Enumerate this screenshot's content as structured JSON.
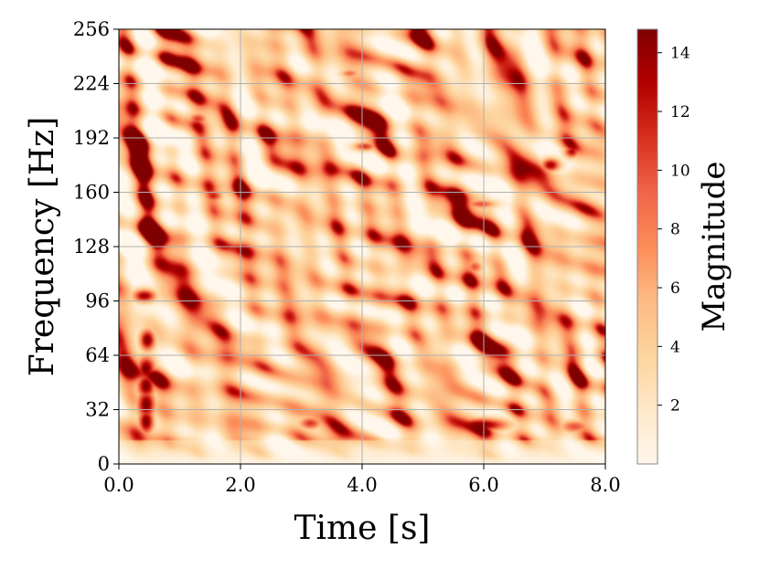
{
  "chart_data": {
    "type": "heatmap",
    "title": "",
    "xlabel": "Time [s]",
    "ylabel": "Frequency [Hz]",
    "xlim": [
      0,
      8
    ],
    "ylim": [
      0,
      256
    ],
    "x_ticks": [
      "0.0",
      "2.0",
      "4.0",
      "6.0",
      "8.0"
    ],
    "x_tick_values": [
      0,
      2,
      4,
      6,
      8
    ],
    "y_ticks": [
      "0",
      "32",
      "64",
      "96",
      "128",
      "160",
      "192",
      "224",
      "256"
    ],
    "y_tick_values": [
      0,
      32,
      64,
      96,
      128,
      160,
      192,
      224,
      256
    ],
    "grid": true,
    "colormap": "OrRd",
    "colorbar": {
      "label": "Magnitude",
      "range": [
        0,
        14.8
      ],
      "ticks": [
        "2",
        "4",
        "6",
        "8",
        "10",
        "12",
        "14"
      ],
      "tick_values": [
        2,
        4,
        6,
        8,
        10,
        12,
        14
      ]
    },
    "background_level": [
      2,
      7
    ],
    "hotspots": [
      {
        "t": 0.45,
        "f": 25,
        "dt": 0.1,
        "df": 6,
        "magnitude": 15
      },
      {
        "t": 0.45,
        "f": 35,
        "dt": 0.12,
        "df": 7,
        "magnitude": 15
      },
      {
        "t": 0.45,
        "f": 46,
        "dt": 0.12,
        "df": 6,
        "magnitude": 15
      },
      {
        "t": 0.45,
        "f": 56,
        "dt": 0.12,
        "df": 6,
        "magnitude": 15
      },
      {
        "t": 0.47,
        "f": 73,
        "dt": 0.1,
        "df": 5,
        "magnitude": 15
      },
      {
        "t": 0.42,
        "f": 99,
        "dt": 0.15,
        "df": 3,
        "magnitude": 14
      },
      {
        "t": 5.95,
        "f": 23,
        "dt": 0.35,
        "df": 3,
        "magnitude": 15
      },
      {
        "t": 3.15,
        "f": 24,
        "dt": 0.15,
        "df": 3,
        "magnitude": 11
      },
      {
        "t": 7.5,
        "f": 22,
        "dt": 0.2,
        "df": 3,
        "magnitude": 10
      },
      {
        "t": 7.1,
        "f": 176,
        "dt": 0.12,
        "df": 3,
        "magnitude": 14
      },
      {
        "t": 7.45,
        "f": 184,
        "dt": 0.1,
        "df": 3,
        "magnitude": 13
      },
      {
        "t": 1.55,
        "f": 158,
        "dt": 0.12,
        "df": 3,
        "magnitude": 12
      },
      {
        "t": 4.05,
        "f": 187,
        "dt": 0.15,
        "df": 2,
        "magnitude": 11
      },
      {
        "t": 1.3,
        "f": 203,
        "dt": 0.12,
        "df": 3,
        "magnitude": 11
      },
      {
        "t": 5.95,
        "f": 153,
        "dt": 0.2,
        "df": 2,
        "magnitude": 10
      },
      {
        "t": 5.85,
        "f": 116,
        "dt": 0.1,
        "df": 3,
        "magnitude": 10
      },
      {
        "t": 3.8,
        "f": 230,
        "dt": 0.12,
        "df": 2,
        "magnitude": 9
      },
      {
        "t": 1.9,
        "f": 128,
        "dt": 0.15,
        "df": 2,
        "magnitude": 9
      }
    ]
  }
}
